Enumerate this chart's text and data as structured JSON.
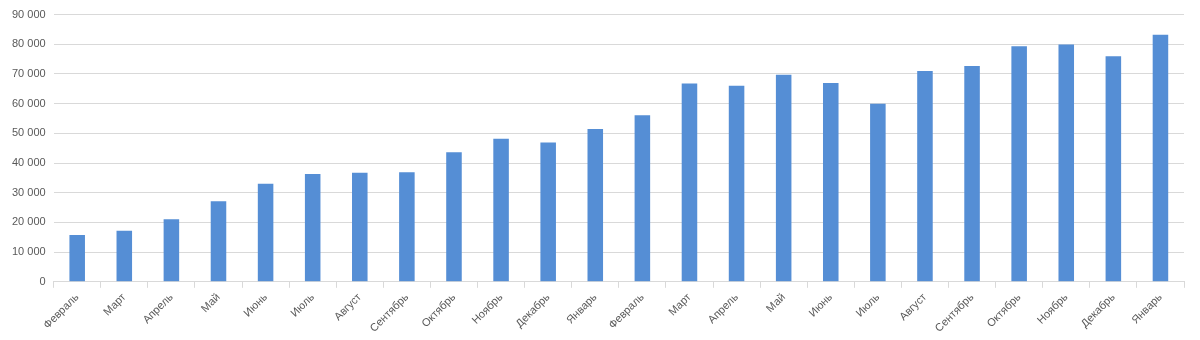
{
  "chart_data": {
    "type": "bar",
    "categories": [
      "Февраль",
      "Март",
      "Апрель",
      "Май",
      "Июнь",
      "Июль",
      "Август",
      "Сентябрь",
      "Октябрь",
      "Ноябрь",
      "Декабрь",
      "Январь",
      "Февраль",
      "Март",
      "Апрель",
      "Май",
      "Июнь",
      "Июль",
      "Август",
      "Сентябрь",
      "Октябрь",
      "Ноябрь",
      "Декабрь",
      "Январь"
    ],
    "values": [
      15800,
      17200,
      21100,
      27100,
      33000,
      36300,
      36700,
      36900,
      43600,
      48200,
      46900,
      51500,
      56100,
      66800,
      66000,
      69700,
      67000,
      60000,
      71000,
      72700,
      79300,
      79900,
      76000,
      83200
    ],
    "color": "#558ed5",
    "ylim": [
      0,
      90000
    ],
    "yticks": [
      0,
      {
        "value": 10000,
        "label": "10 000"
      },
      {
        "value": 20000,
        "label": "20 000"
      },
      {
        "value": 30000,
        "label": "30 000"
      },
      {
        "value": 40000,
        "label": "40 000"
      },
      {
        "value": 50000,
        "label": "50 000"
      },
      {
        "value": 60000,
        "label": "60 000"
      },
      {
        "value": 70000,
        "label": "70 000"
      },
      {
        "value": 80000,
        "label": "80 000"
      },
      {
        "value": 90000,
        "label": "90 000"
      }
    ],
    "grid": "y"
  }
}
